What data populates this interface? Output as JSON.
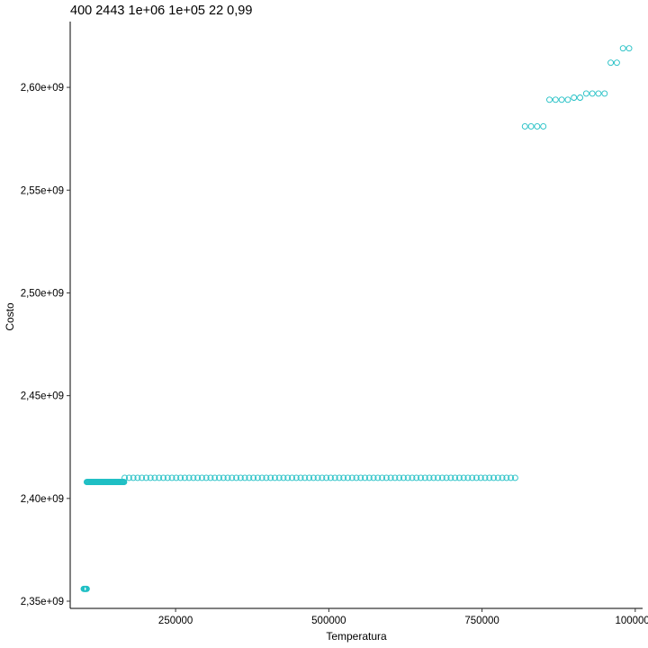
{
  "chart_data": {
    "type": "scatter",
    "title": "400 2443 1e+06 1e+05 22 0,99",
    "xlabel": "Temperatura",
    "ylabel": "Costo",
    "xlim": [
      78000,
      1012000
    ],
    "ylim": [
      2346500000,
      2632000000
    ],
    "x_ticks": [
      {
        "value": 250000,
        "label": "250000"
      },
      {
        "value": 500000,
        "label": "500000"
      },
      {
        "value": 750000,
        "label": "750000"
      },
      {
        "value": 1000000,
        "label": "1000000"
      }
    ],
    "y_ticks": [
      {
        "value": 2350000000,
        "label": "2,35e+09"
      },
      {
        "value": 2400000000,
        "label": "2,40e+09"
      },
      {
        "value": 2450000000,
        "label": "2,45e+09"
      },
      {
        "value": 2500000000,
        "label": "2,50e+09"
      },
      {
        "value": 2550000000,
        "label": "2,55e+09"
      },
      {
        "value": 2600000000,
        "label": "2,60e+09"
      }
    ],
    "grid": false,
    "legend": "none",
    "point_color": "#1fbfc4",
    "series": [
      {
        "groups": [
          {
            "x_start": 100000,
            "x_end": 105000,
            "x_step": 1000,
            "y": 2356000000
          },
          {
            "x_start": 105000,
            "x_end": 166000,
            "x_step": 1000,
            "y": 2408000000
          },
          {
            "x_start": 167000,
            "x_end": 810000,
            "x_step": 7000,
            "y": 2410000000
          }
        ],
        "points": [
          {
            "x": 820000,
            "y": 2581000000
          },
          {
            "x": 830000,
            "y": 2581000000
          },
          {
            "x": 840000,
            "y": 2581000000
          },
          {
            "x": 850000,
            "y": 2581000000
          },
          {
            "x": 860000,
            "y": 2594000000
          },
          {
            "x": 870000,
            "y": 2594000000
          },
          {
            "x": 880000,
            "y": 2594000000
          },
          {
            "x": 890000,
            "y": 2594000000
          },
          {
            "x": 900000,
            "y": 2595000000
          },
          {
            "x": 910000,
            "y": 2595000000
          },
          {
            "x": 920000,
            "y": 2597000000
          },
          {
            "x": 930000,
            "y": 2597000000
          },
          {
            "x": 940000,
            "y": 2597000000
          },
          {
            "x": 950000,
            "y": 2597000000
          },
          {
            "x": 960000,
            "y": 2612000000
          },
          {
            "x": 970000,
            "y": 2612000000
          },
          {
            "x": 980000,
            "y": 2619000000
          },
          {
            "x": 990000,
            "y": 2619000000
          }
        ]
      }
    ]
  }
}
